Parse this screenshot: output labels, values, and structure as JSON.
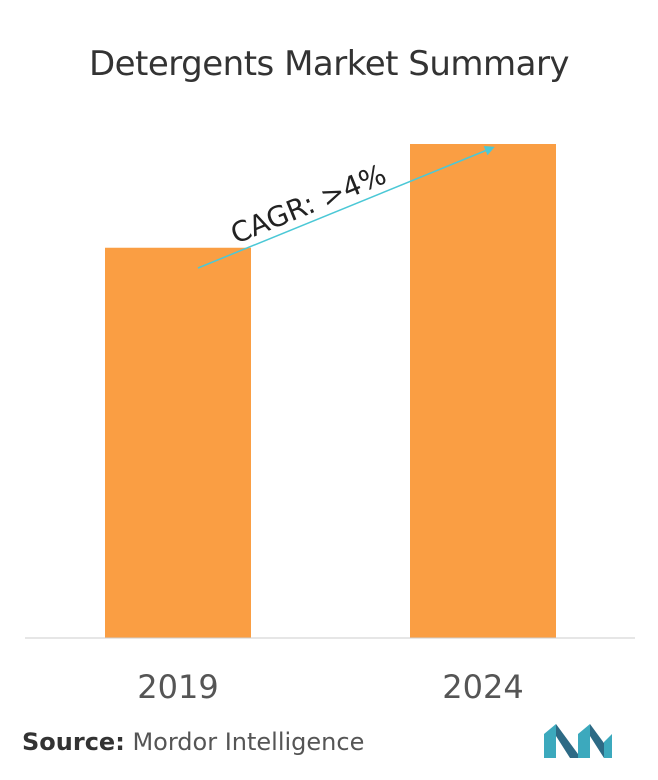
{
  "chart_data": {
    "type": "bar",
    "title": "Detergents Market Summary",
    "categories": [
      "2019",
      "2024"
    ],
    "values": [
      0.79,
      1.0
    ],
    "value_note": "relative heights; no value axis printed",
    "ylim": [
      0,
      1.0
    ],
    "xlabel": "",
    "ylabel": "",
    "grid": false,
    "bar_color": "#FA9E43",
    "annotation": {
      "text": "CAGR: >4%",
      "arrow_color": "#4BC8D6"
    }
  },
  "source": {
    "label": "Source:",
    "text": "Mordor Intelligence"
  },
  "colors": {
    "logo_teal": "#3CA9BD",
    "logo_dark": "#2D6A85"
  }
}
